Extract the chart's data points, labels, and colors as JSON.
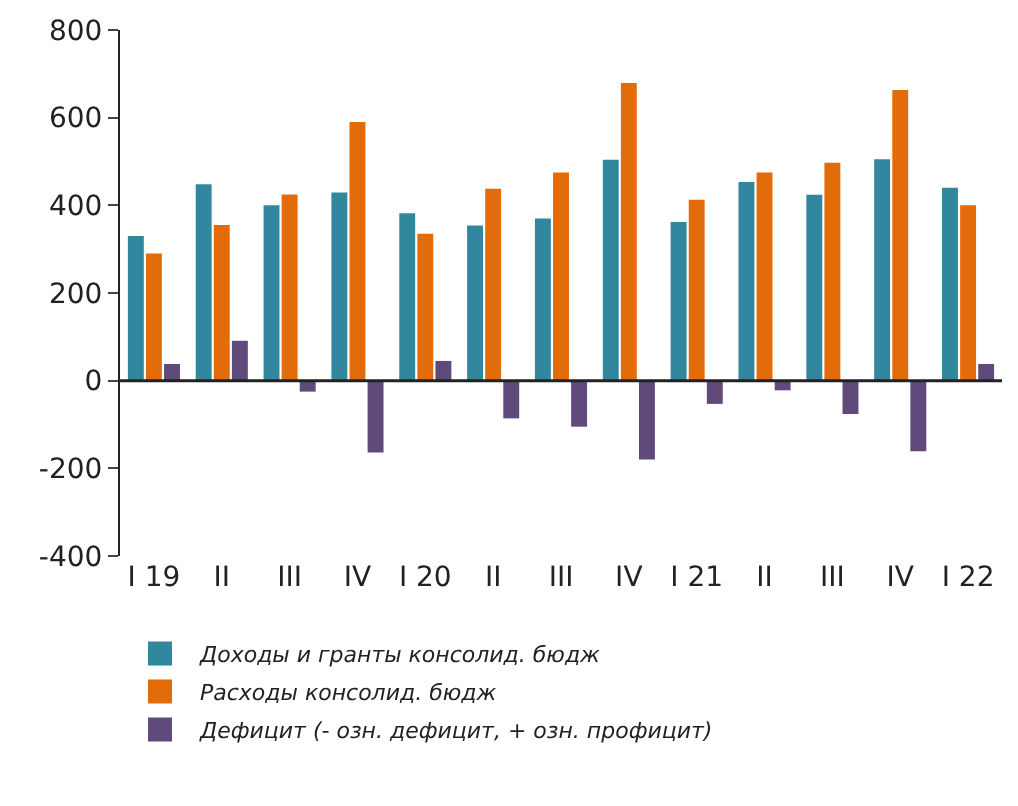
{
  "chart_data": {
    "type": "bar",
    "categories": [
      "I 19",
      "II",
      "III",
      "IV",
      "I 20",
      "II",
      "III",
      "IV",
      "I 21",
      "II",
      "III",
      "IV",
      "I 22"
    ],
    "series": [
      {
        "name": "Доходы и гранты консолид. бюдж",
        "color": "#31879e",
        "values": [
          330,
          448,
          400,
          429,
          382,
          354,
          370,
          504,
          362,
          453,
          424,
          505,
          440
        ]
      },
      {
        "name": "Расходы консолид. бюдж",
        "color": "#e36c0a",
        "values": [
          290,
          355,
          425,
          590,
          335,
          438,
          475,
          679,
          413,
          475,
          497,
          663,
          400
        ]
      },
      {
        "name": "Дефицит (- озн. дефицит, + озн. профицит)",
        "color": "#604a7b",
        "values": [
          38,
          91,
          -25,
          -164,
          45,
          -86,
          -105,
          -180,
          -53,
          -22,
          -76,
          -161,
          38
        ]
      }
    ],
    "ylim": [
      -400,
      800
    ],
    "yticks": [
      -400,
      -200,
      0,
      200,
      400,
      600,
      800
    ],
    "ref_lines": [
      {
        "axis": "y",
        "value": 0,
        "color": "#222222"
      }
    ],
    "legend": "bottom"
  }
}
